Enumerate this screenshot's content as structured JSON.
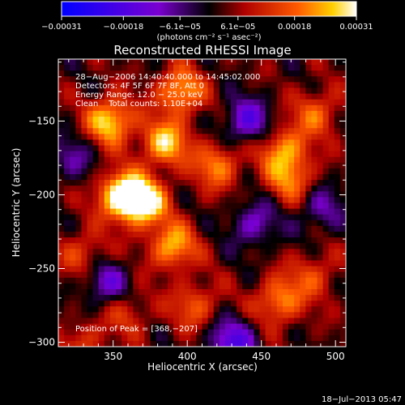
{
  "chart_data": {
    "type": "heatmap",
    "title": "Reconstructed RHESSI Image",
    "xlabel": "Heliocentric X (arcsec)",
    "ylabel": "Heliocentric Y (arcsec)",
    "xlim": [
      313,
      507
    ],
    "ylim": [
      -303,
      -108
    ],
    "x_ticks": [
      350,
      400,
      450,
      500
    ],
    "y_ticks": [
      -150,
      -200,
      -250,
      -300
    ],
    "x_tick_labels": [
      "350",
      "400",
      "450",
      "500"
    ],
    "y_tick_labels": [
      "−150",
      "−200",
      "−250",
      "−300"
    ],
    "colorbar": {
      "range": [
        -0.00031,
        0.00031
      ],
      "ticks": [
        -0.00031,
        -0.00018,
        -6.1e-05,
        6.1e-05,
        0.00018,
        0.00031
      ],
      "tick_labels": [
        "−0.00031",
        "−0.00018",
        "−6.1e−05",
        "6.1e−05",
        "0.00018",
        "0.00031"
      ],
      "unit_label": "(photons cm⁻² s⁻¹ asec⁻²)"
    },
    "annotations": [
      "28−Aug−2006 14:40:40.000 to 14:45:02.000",
      "Detectors: 4F 5F 6F 7F 8F, Att 0",
      "Energy Range: 12.0 − 25.0 keV",
      "Clean    Total counts: 1.10E+04"
    ],
    "peak_label": "Position of Peak = [368,−207]",
    "peak": [
      368,
      -207
    ],
    "sources": [
      {
        "x": 370,
        "y": -205,
        "amp": 0.00031
      },
      {
        "x": 355,
        "y": -200,
        "amp": 0.00028
      },
      {
        "x": 348,
        "y": -150,
        "amp": 0.00026
      },
      {
        "x": 385,
        "y": -165,
        "amp": 0.00024
      },
      {
        "x": 395,
        "y": -130,
        "amp": 0.00022
      },
      {
        "x": 420,
        "y": -180,
        "amp": 0.00018
      },
      {
        "x": 465,
        "y": -170,
        "amp": 0.0002
      },
      {
        "x": 487,
        "y": -145,
        "amp": 0.00015
      },
      {
        "x": 470,
        "y": -190,
        "amp": 0.00016
      },
      {
        "x": 390,
        "y": -235,
        "amp": 0.00022
      },
      {
        "x": 462,
        "y": -272,
        "amp": 0.00019
      },
      {
        "x": 405,
        "y": -275,
        "amp": 0.00014
      },
      {
        "x": 330,
        "y": -240,
        "amp": 0.00012
      },
      {
        "x": 360,
        "y": -280,
        "amp": 0.0001
      },
      {
        "x": 330,
        "y": -300,
        "amp": 0.0001
      },
      {
        "x": 485,
        "y": -255,
        "amp": 0.00012
      },
      {
        "x": 440,
        "y": -150,
        "amp": -0.00018
      },
      {
        "x": 445,
        "y": -220,
        "amp": -0.00014
      },
      {
        "x": 430,
        "y": -300,
        "amp": -0.0002
      },
      {
        "x": 345,
        "y": -260,
        "amp": -0.00015
      },
      {
        "x": 490,
        "y": -210,
        "amp": -0.00012
      },
      {
        "x": 322,
        "y": -175,
        "amp": -0.0001
      }
    ]
  },
  "timestamp": "18−Jul−2013 05:47"
}
